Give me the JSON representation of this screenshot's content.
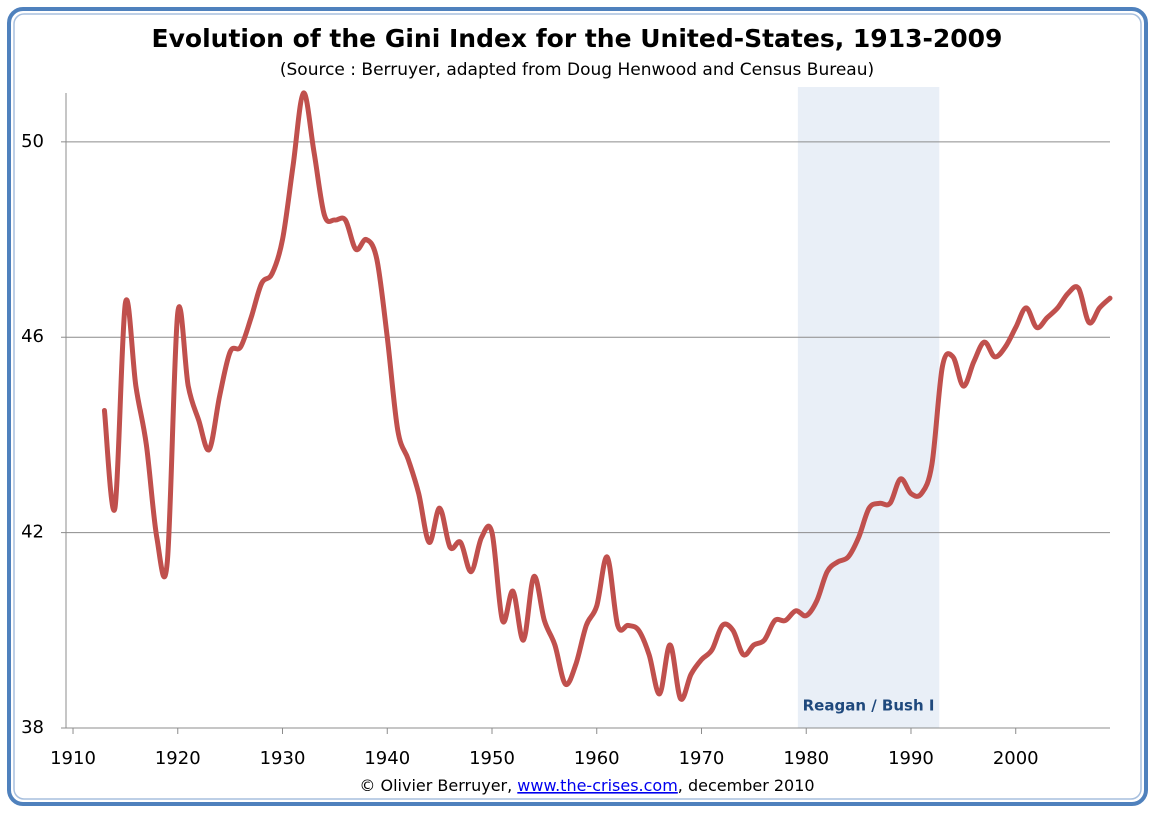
{
  "chart_data": {
    "type": "line",
    "title": "Evolution of the Gini Index for the United-States, 1913-2009",
    "subtitle": "(Source : Berruyer, adapted from Doug Henwood and Census Bureau)",
    "footer": {
      "before": "© Olivier Berruyer, ",
      "link": "www.the-crises.com",
      "after": ", december 2010"
    },
    "shade": {
      "range": [
        1979.2,
        1992.7
      ],
      "label": "Reagan / Bush I",
      "color": "#e9eff7"
    },
    "x": [
      1913,
      1914,
      1915,
      1916,
      1917,
      1918,
      1919,
      1920,
      1921,
      1922,
      1923,
      1924,
      1925,
      1926,
      1927,
      1928,
      1929,
      1930,
      1931,
      1932,
      1933,
      1934,
      1935,
      1936,
      1937,
      1938,
      1939,
      1940,
      1941,
      1942,
      1943,
      1944,
      1945,
      1946,
      1947,
      1948,
      1949,
      1950,
      1951,
      1952,
      1953,
      1954,
      1955,
      1956,
      1957,
      1958,
      1959,
      1960,
      1961,
      1962,
      1963,
      1964,
      1965,
      1966,
      1967,
      1968,
      1969,
      1970,
      1971,
      1972,
      1973,
      1974,
      1975,
      1976,
      1977,
      1978,
      1979,
      1980,
      1981,
      1982,
      1983,
      1984,
      1985,
      1986,
      1987,
      1988,
      1989,
      1990,
      1991,
      1992,
      1993,
      1994,
      1995,
      1996,
      1997,
      1998,
      1999,
      2000,
      2001,
      2002,
      2003,
      2004,
      2005,
      2006,
      2007,
      2008,
      2009
    ],
    "series": [
      {
        "name": "Gini Index",
        "color": "#c0504d",
        "values": [
          44.5,
          42.5,
          46.7,
          45.0,
          43.8,
          41.9,
          41.4,
          46.5,
          45.0,
          44.3,
          43.7,
          44.8,
          45.7,
          45.8,
          46.4,
          47.1,
          47.3,
          48.0,
          49.5,
          51.0,
          49.8,
          48.5,
          48.4,
          48.4,
          47.8,
          48.0,
          47.6,
          46.0,
          44.1,
          43.5,
          42.8,
          41.8,
          42.5,
          41.7,
          41.8,
          41.2,
          41.9,
          42.0,
          40.2,
          40.8,
          39.8,
          41.1,
          40.2,
          39.7,
          38.9,
          39.3,
          40.1,
          40.5,
          41.5,
          40.1,
          40.1,
          40.0,
          39.5,
          38.7,
          39.7,
          38.6,
          39.1,
          39.4,
          39.6,
          40.1,
          40.0,
          39.5,
          39.7,
          39.8,
          40.2,
          40.2,
          40.4,
          40.3,
          40.6,
          41.2,
          41.4,
          41.5,
          41.9,
          42.5,
          42.6,
          42.6,
          43.1,
          42.8,
          42.8,
          43.4,
          45.4,
          45.6,
          45.0,
          45.5,
          45.9,
          45.6,
          45.8,
          46.2,
          46.6,
          46.2,
          46.4,
          46.6,
          46.9,
          47.0,
          46.3,
          46.6,
          46.8
        ]
      }
    ],
    "xlim": [
      1909.33,
      2009.0
    ],
    "xticks": [
      1910,
      1920,
      1930,
      1940,
      1950,
      1960,
      1970,
      1980,
      1990,
      2000
    ],
    "ylim": [
      38,
      51
    ],
    "yticks": [
      38,
      42,
      46,
      50
    ],
    "grid": true
  }
}
